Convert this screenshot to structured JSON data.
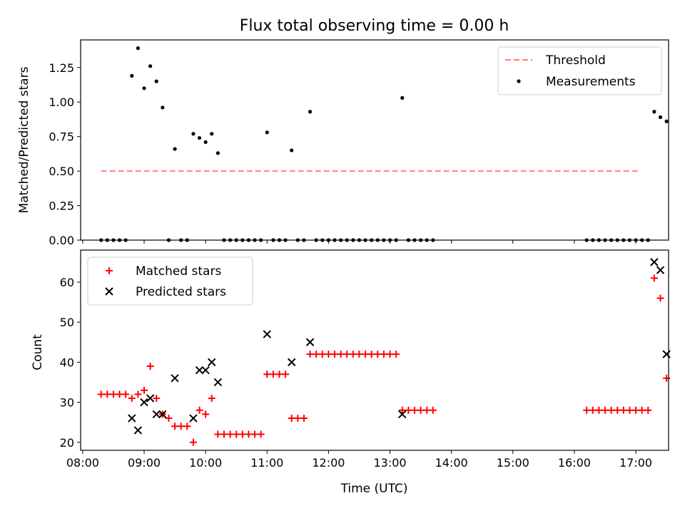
{
  "figure": {
    "title": "Flux total observing time = 0.00 h",
    "xlabel": "Time (UTC)"
  },
  "chart_data": [
    {
      "type": "scatter",
      "ylabel": "Matched/Predicted stars",
      "xlim": [
        "07:58",
        "17:32"
      ],
      "ylim": [
        0,
        1.45
      ],
      "yticks": [
        0.0,
        0.25,
        0.5,
        0.75,
        1.0,
        1.25
      ],
      "ytick_labels": [
        "0.00",
        "0.25",
        "0.50",
        "0.75",
        "1.00",
        "1.25"
      ],
      "legend": [
        "Threshold",
        "Measurements"
      ],
      "legend_position": "top-right",
      "grid": false,
      "series": [
        {
          "name": "Threshold",
          "kind": "line",
          "style": "dashed",
          "color": "#ff7f7f",
          "x": [
            "08:18",
            "17:03"
          ],
          "y": [
            0.5,
            0.5
          ]
        },
        {
          "name": "Measurements",
          "kind": "scatter",
          "marker": "dot",
          "color": "#000000",
          "points": [
            [
              "08:18",
              0
            ],
            [
              "08:24",
              0
            ],
            [
              "08:30",
              0
            ],
            [
              "08:36",
              0
            ],
            [
              "08:42",
              0
            ],
            [
              "08:48",
              1.19
            ],
            [
              "08:54",
              1.39
            ],
            [
              "09:00",
              1.1
            ],
            [
              "09:06",
              1.26
            ],
            [
              "09:12",
              1.15
            ],
            [
              "09:18",
              0.96
            ],
            [
              "09:24",
              0
            ],
            [
              "09:30",
              0.66
            ],
            [
              "09:36",
              0
            ],
            [
              "09:42",
              0
            ],
            [
              "09:48",
              0.77
            ],
            [
              "09:54",
              0.74
            ],
            [
              "10:00",
              0.71
            ],
            [
              "10:06",
              0.77
            ],
            [
              "10:12",
              0.63
            ],
            [
              "10:18",
              0
            ],
            [
              "10:24",
              0
            ],
            [
              "10:30",
              0
            ],
            [
              "10:36",
              0
            ],
            [
              "10:42",
              0
            ],
            [
              "10:48",
              0
            ],
            [
              "10:54",
              0
            ],
            [
              "11:00",
              0.78
            ],
            [
              "11:06",
              0
            ],
            [
              "11:12",
              0
            ],
            [
              "11:18",
              0
            ],
            [
              "11:24",
              0.65
            ],
            [
              "11:30",
              0
            ],
            [
              "11:36",
              0
            ],
            [
              "11:42",
              0.93
            ],
            [
              "11:48",
              0
            ],
            [
              "11:54",
              0
            ],
            [
              "12:00",
              0
            ],
            [
              "12:06",
              0
            ],
            [
              "12:12",
              0
            ],
            [
              "12:18",
              0
            ],
            [
              "12:24",
              0
            ],
            [
              "12:30",
              0
            ],
            [
              "12:36",
              0
            ],
            [
              "12:42",
              0
            ],
            [
              "12:48",
              0
            ],
            [
              "12:54",
              0
            ],
            [
              "13:00",
              0
            ],
            [
              "13:06",
              0
            ],
            [
              "13:12",
              1.03
            ],
            [
              "13:18",
              0
            ],
            [
              "13:24",
              0
            ],
            [
              "13:30",
              0
            ],
            [
              "13:36",
              0
            ],
            [
              "13:42",
              0
            ],
            [
              "16:12",
              0
            ],
            [
              "16:18",
              0
            ],
            [
              "16:24",
              0
            ],
            [
              "16:30",
              0
            ],
            [
              "16:36",
              0
            ],
            [
              "16:42",
              0
            ],
            [
              "16:48",
              0
            ],
            [
              "16:54",
              0
            ],
            [
              "17:00",
              0
            ],
            [
              "17:06",
              0
            ],
            [
              "17:12",
              0
            ],
            [
              "17:18",
              0.93
            ],
            [
              "17:24",
              0.89
            ],
            [
              "17:30",
              0.86
            ]
          ]
        }
      ]
    },
    {
      "type": "scatter",
      "ylabel": "Count",
      "xlim": [
        "07:58",
        "17:32"
      ],
      "ylim": [
        18,
        68
      ],
      "yticks": [
        20,
        30,
        40,
        50,
        60
      ],
      "xticks": [
        "08:00",
        "09:00",
        "10:00",
        "11:00",
        "12:00",
        "13:00",
        "14:00",
        "15:00",
        "16:00",
        "17:00"
      ],
      "xtick_labels": [
        "08:00",
        "09:00",
        "10:00",
        "11:00",
        "12:00",
        "13:00",
        "14:00",
        "15:00",
        "16:00",
        "17:00"
      ],
      "legend": [
        "Matched stars",
        "Predicted stars"
      ],
      "legend_position": "top-left",
      "grid": false,
      "series": [
        {
          "name": "Matched stars",
          "marker": "+",
          "color": "#ff0000",
          "points": [
            [
              "08:18",
              32
            ],
            [
              "08:24",
              32
            ],
            [
              "08:30",
              32
            ],
            [
              "08:36",
              32
            ],
            [
              "08:42",
              32
            ],
            [
              "08:48",
              31
            ],
            [
              "08:54",
              32
            ],
            [
              "09:00",
              33
            ],
            [
              "09:06",
              39
            ],
            [
              "09:12",
              31
            ],
            [
              "09:18",
              27
            ],
            [
              "09:24",
              26
            ],
            [
              "09:30",
              24
            ],
            [
              "09:36",
              24
            ],
            [
              "09:42",
              24
            ],
            [
              "09:48",
              20
            ],
            [
              "09:54",
              28
            ],
            [
              "10:00",
              27
            ],
            [
              "10:06",
              31
            ],
            [
              "10:12",
              22
            ],
            [
              "10:18",
              22
            ],
            [
              "10:24",
              22
            ],
            [
              "10:30",
              22
            ],
            [
              "10:36",
              22
            ],
            [
              "10:42",
              22
            ],
            [
              "10:48",
              22
            ],
            [
              "10:54",
              22
            ],
            [
              "11:00",
              37
            ],
            [
              "11:06",
              37
            ],
            [
              "11:12",
              37
            ],
            [
              "11:18",
              37
            ],
            [
              "11:24",
              26
            ],
            [
              "11:30",
              26
            ],
            [
              "11:36",
              26
            ],
            [
              "11:42",
              42
            ],
            [
              "11:48",
              42
            ],
            [
              "11:54",
              42
            ],
            [
              "12:00",
              42
            ],
            [
              "12:06",
              42
            ],
            [
              "12:12",
              42
            ],
            [
              "12:18",
              42
            ],
            [
              "12:24",
              42
            ],
            [
              "12:30",
              42
            ],
            [
              "12:36",
              42
            ],
            [
              "12:42",
              42
            ],
            [
              "12:48",
              42
            ],
            [
              "12:54",
              42
            ],
            [
              "13:00",
              42
            ],
            [
              "13:06",
              42
            ],
            [
              "13:12",
              28
            ],
            [
              "13:18",
              28
            ],
            [
              "13:24",
              28
            ],
            [
              "13:30",
              28
            ],
            [
              "13:36",
              28
            ],
            [
              "13:42",
              28
            ],
            [
              "16:12",
              28
            ],
            [
              "16:18",
              28
            ],
            [
              "16:24",
              28
            ],
            [
              "16:30",
              28
            ],
            [
              "16:36",
              28
            ],
            [
              "16:42",
              28
            ],
            [
              "16:48",
              28
            ],
            [
              "16:54",
              28
            ],
            [
              "17:00",
              28
            ],
            [
              "17:06",
              28
            ],
            [
              "17:12",
              28
            ],
            [
              "17:18",
              61
            ],
            [
              "17:24",
              56
            ],
            [
              "17:30",
              36
            ]
          ]
        },
        {
          "name": "Predicted stars",
          "marker": "x",
          "color": "#000000",
          "points": [
            [
              "08:48",
              26
            ],
            [
              "08:54",
              23
            ],
            [
              "09:00",
              30
            ],
            [
              "09:06",
              31
            ],
            [
              "09:12",
              27
            ],
            [
              "09:18",
              27
            ],
            [
              "09:30",
              36
            ],
            [
              "09:48",
              26
            ],
            [
              "09:54",
              38
            ],
            [
              "10:00",
              38
            ],
            [
              "10:06",
              40
            ],
            [
              "10:12",
              35
            ],
            [
              "11:00",
              47
            ],
            [
              "11:24",
              40
            ],
            [
              "11:42",
              45
            ],
            [
              "13:12",
              27
            ],
            [
              "17:18",
              65
            ],
            [
              "17:24",
              63
            ],
            [
              "17:30",
              42
            ]
          ]
        }
      ]
    }
  ]
}
